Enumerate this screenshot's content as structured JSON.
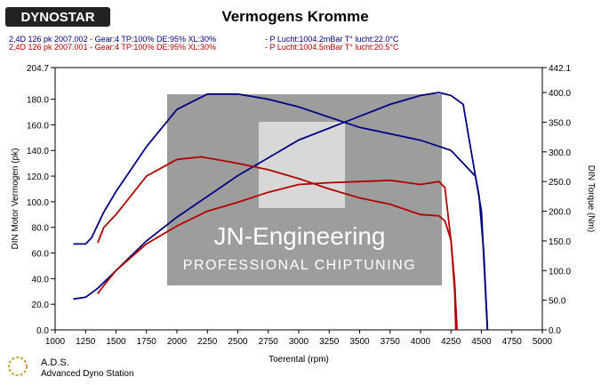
{
  "chart_data": {
    "type": "line",
    "title": "Vermogens Kromme",
    "logo": "DYNOSTAR",
    "runs": [
      {
        "label": "2,4D 126 pk 2007.002 - Gear:4 TP:100% DE:95% XL:30%",
        "conditions": "- P Lucht:1004.2mBar T° lucht:22.0°C",
        "color": "#000080"
      },
      {
        "label": "2,4D 126 pk 2007.001 - Gear:4 TP:100% DE:95% XL:30%",
        "conditions": "- P Lucht:1004.5mBar T° lucht:20.5°C",
        "color": "#b00000"
      }
    ],
    "x_label": "Toerental (rpm)",
    "y_label": "DIN Motor Vermogen (pk)",
    "y2_label": "DIN Torque (Nm)",
    "watermark": {
      "title": "JN-Engineering",
      "subtitle": "PROFESSIONAL CHIPTUNING"
    },
    "footer": {
      "title": "A.D.S.",
      "subtitle": "Advanced Dyno Station"
    },
    "xlim": [
      1000,
      5000
    ],
    "xticks": [
      1000,
      1250,
      1500,
      1750,
      2000,
      2250,
      2500,
      2750,
      3000,
      3250,
      3500,
      3750,
      4000,
      4250,
      4500,
      4750,
      5000
    ],
    "ylim": [
      0,
      204.7
    ],
    "yticks": [
      {
        "value": 0,
        "label": "0.0"
      },
      {
        "value": 20,
        "label": "20.0"
      },
      {
        "value": 40,
        "label": "40.0"
      },
      {
        "value": 60,
        "label": "60.0"
      },
      {
        "value": 80,
        "label": "80.0"
      },
      {
        "value": 100,
        "label": "100.0"
      },
      {
        "value": 120,
        "label": "120.0"
      },
      {
        "value": 140,
        "label": "140.0"
      },
      {
        "value": 160,
        "label": "160.0"
      },
      {
        "value": 180,
        "label": "180.0"
      },
      204.7
    ],
    "y2lim": [
      0,
      442.1
    ],
    "y2ticks": [
      {
        "value": 0,
        "label": "0.0"
      },
      {
        "value": 50,
        "label": "50.0"
      },
      {
        "value": 100,
        "label": "100.0"
      },
      {
        "value": 150,
        "label": "150.0"
      },
      {
        "value": 200,
        "label": "200.0"
      },
      {
        "value": 250,
        "label": "250.0"
      },
      {
        "value": 300,
        "label": "300.0"
      },
      {
        "value": 350,
        "label": "350.0"
      },
      {
        "value": 400,
        "label": "400.0"
      },
      442.1
    ],
    "series": [
      {
        "color": "#000080",
        "axis": "y",
        "x": [
          1150,
          1250,
          1300,
          1400,
          1500,
          1750,
          2000,
          2250,
          2500,
          2750,
          3000,
          3250,
          3500,
          3750,
          4000,
          4250,
          4400,
          4450,
          4480,
          4520,
          4550
        ],
        "values": [
          67,
          67,
          72,
          92,
          108,
          143,
          172,
          184,
          184,
          180,
          174,
          166,
          158,
          153,
          148,
          140,
          125,
          120,
          105,
          60,
          0
        ]
      },
      {
        "color": "#000080",
        "axis": "y2",
        "x": [
          1150,
          1250,
          1350,
          1500,
          1750,
          2000,
          2250,
          2500,
          2750,
          3000,
          3250,
          3500,
          3750,
          4000,
          4150,
          4250,
          4350,
          4400,
          4450,
          4500,
          4520,
          4550
        ],
        "values": [
          52,
          55,
          70,
          100,
          150,
          190,
          225,
          260,
          290,
          320,
          340,
          360,
          380,
          395,
          400,
          395,
          380,
          320,
          260,
          200,
          120,
          0
        ]
      },
      {
        "color": "#b00000",
        "axis": "y",
        "x": [
          1350,
          1400,
          1500,
          1750,
          2000,
          2200,
          2500,
          2750,
          3000,
          3250,
          3500,
          3750,
          4000,
          4150,
          4200,
          4250,
          4280,
          4290
        ],
        "values": [
          68,
          80,
          90,
          120,
          133,
          135,
          130,
          125,
          118,
          110,
          103,
          98,
          90,
          89,
          85,
          70,
          30,
          0
        ]
      },
      {
        "color": "#b00000",
        "axis": "y2",
        "x": [
          1350,
          1400,
          1500,
          1750,
          2000,
          2250,
          2500,
          2750,
          3000,
          3250,
          3500,
          3750,
          4000,
          4150,
          4200,
          4250,
          4280,
          4300
        ],
        "values": [
          61,
          75,
          100,
          145,
          175,
          200,
          215,
          232,
          245,
          248,
          250,
          252,
          245,
          250,
          240,
          150,
          80,
          0
        ]
      }
    ]
  }
}
